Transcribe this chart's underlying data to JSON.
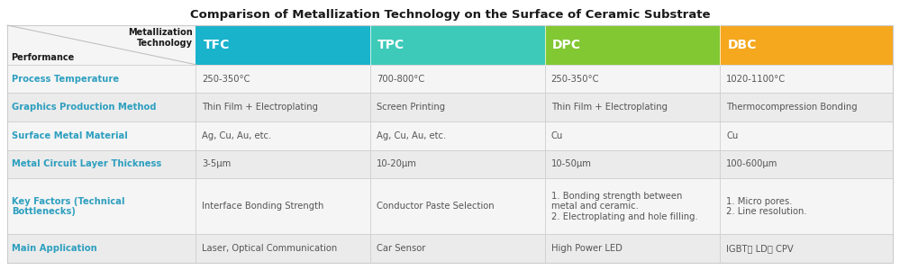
{
  "title": "Comparison of Metallization Technology on the Surface of Ceramic Substrate",
  "title_fontsize": 9.5,
  "bg_color": "#ffffff",
  "col_labels": [
    "TFC",
    "TPC",
    "DPC",
    "DBC"
  ],
  "col_label_color": "#ffffff",
  "row_label_color": "#2e9fbf",
  "data_color": "#555555",
  "row_bg_even": "#f5f5f5",
  "row_bg_odd": "#ebebeb",
  "header_bg": "#f5f5f5",
  "diag_line_color": "#bbbbbb",
  "grid_color": "#cccccc",
  "tfc_color": "#1ab3cc",
  "tpc_color": "#3dcab8",
  "dpc_color": "#82c832",
  "dbc_color": "#f5a81e",
  "rows": [
    {
      "label": "Process Temperature",
      "data": [
        "250-350°C",
        "700-800°C",
        "250-350°C",
        "1020-1100°C"
      ]
    },
    {
      "label": "Graphics Production Method",
      "data": [
        "Thin Film + Electroplating",
        "Screen Printing",
        "Thin Film + Electroplating",
        "Thermocompression Bonding"
      ]
    },
    {
      "label": "Surface Metal Material",
      "data": [
        "Ag, Cu, Au, etc.",
        "Ag, Cu, Au, etc.",
        "Cu",
        "Cu"
      ]
    },
    {
      "label": "Metal Circuit Layer Thickness",
      "data": [
        "3-5μm",
        "10-20μm",
        "10-50μm",
        "100-600μm"
      ]
    },
    {
      "label": "Key Factors (Technical\nBottlenecks)",
      "data": [
        "Interface Bonding Strength",
        "Conductor Paste Selection",
        "1. Bonding strength between\nmetal and ceramic.\n2. Electroplating and hole filling.",
        "1. Micro pores.\n2. Line resolution."
      ]
    },
    {
      "label": "Main Application",
      "data": [
        "Laser, Optical Communication",
        "Car Sensor",
        "High Power LED",
        "IGBT、 LD、 CPV"
      ]
    }
  ]
}
